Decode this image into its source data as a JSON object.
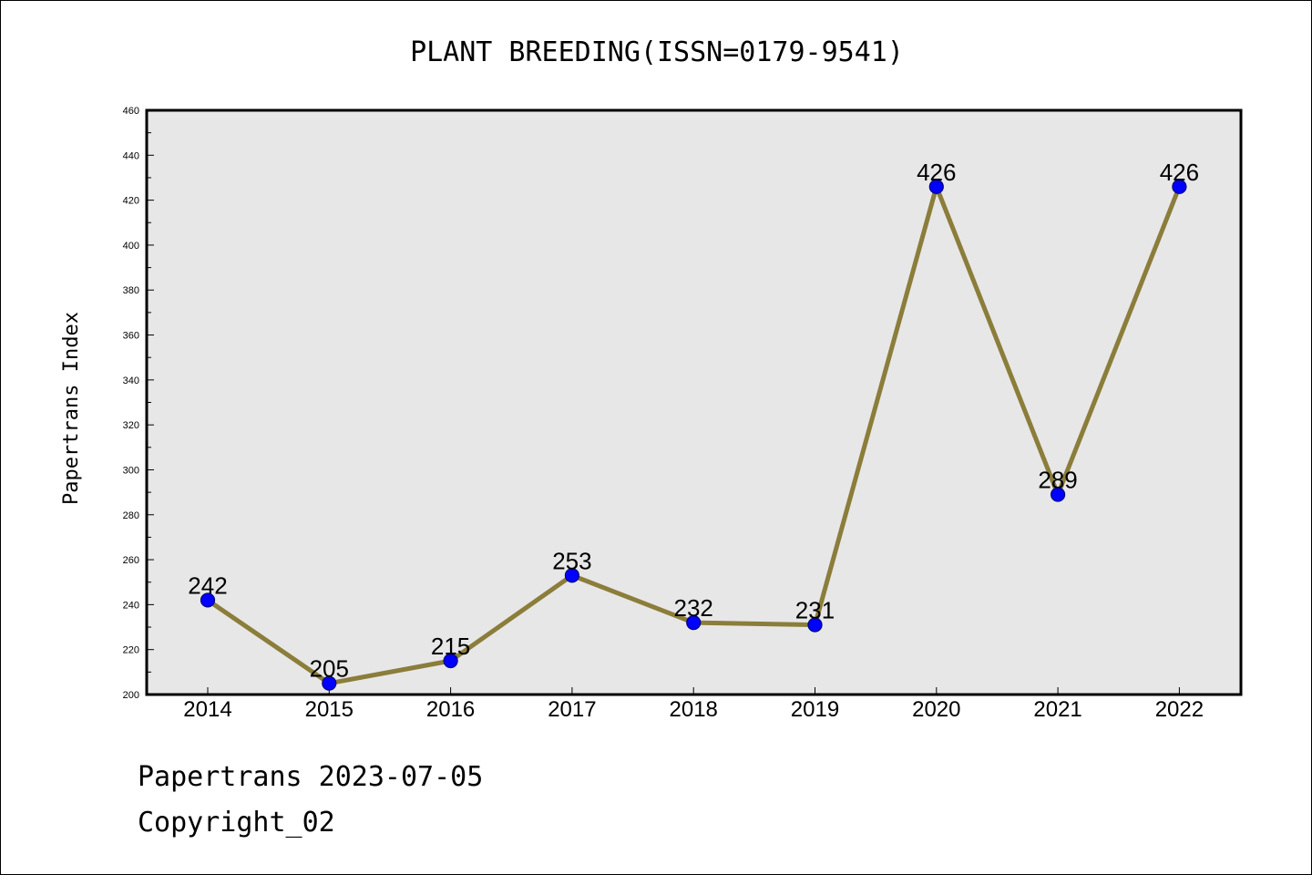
{
  "chart_data": {
    "type": "line",
    "title": "PLANT BREEDING(ISSN=0179-9541)",
    "xlabel": "",
    "ylabel": "Papertrans Index",
    "categories": [
      "2014",
      "2015",
      "2016",
      "2017",
      "2018",
      "2019",
      "2020",
      "2021",
      "2022"
    ],
    "series": [
      {
        "values": [
          242,
          205,
          215,
          253,
          232,
          231,
          426,
          289,
          426
        ]
      }
    ],
    "data_labels": [
      "242",
      "205",
      "215",
      "253",
      "232",
      "231",
      "426",
      "289",
      "426"
    ],
    "ylim": [
      200,
      460
    ],
    "yticks": [
      "200",
      "220",
      "240",
      "260",
      "280",
      "300",
      "320",
      "340",
      "360",
      "380",
      "400",
      "420",
      "440",
      "460"
    ],
    "grid": false,
    "legend": "none",
    "colors": {
      "plot_background": "#e7e7e7",
      "line": "#8b7d3a",
      "marker_fill": "#0000ff",
      "marker_stroke": "#000080"
    }
  },
  "footer": {
    "line1": "Papertrans 2023-07-05",
    "line2": "Copyright_02"
  }
}
